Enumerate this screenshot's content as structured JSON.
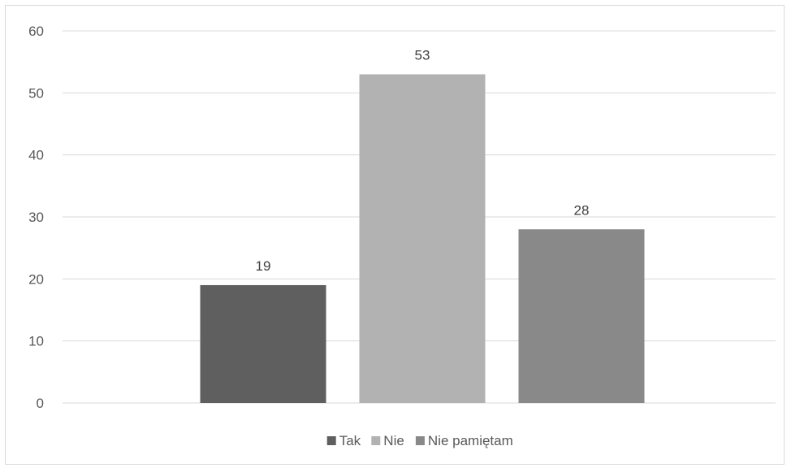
{
  "chart_data": {
    "type": "bar",
    "title": "",
    "xlabel": "",
    "ylabel": "",
    "ylim": [
      0,
      60
    ],
    "yticks": [
      0,
      10,
      20,
      30,
      40,
      50,
      60
    ],
    "grid": true,
    "legend_position": "bottom",
    "categories": [
      ""
    ],
    "series": [
      {
        "name": "Tak",
        "values": [
          19
        ],
        "color": "#5f5f5f"
      },
      {
        "name": "Nie",
        "values": [
          53
        ],
        "color": "#b2b2b2"
      },
      {
        "name": "Nie pamiętam",
        "values": [
          28
        ],
        "color": "#898989"
      }
    ]
  }
}
